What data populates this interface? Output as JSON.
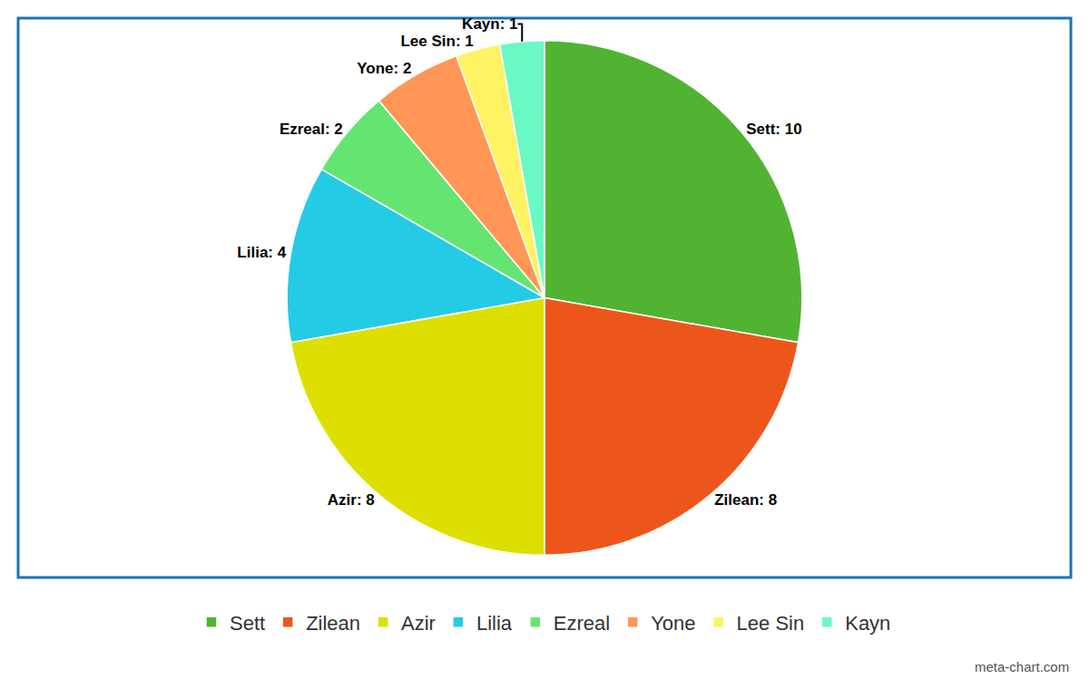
{
  "chart_data": {
    "type": "pie",
    "categories": [
      "Sett",
      "Zilean",
      "Azir",
      "Lilia",
      "Ezreal",
      "Yone",
      "Lee Sin",
      "Kayn"
    ],
    "values": [
      10,
      8,
      8,
      4,
      2,
      2,
      1,
      1
    ],
    "value_labels": [
      "Sett: 10",
      "Zilean: 8",
      "Azir: 8",
      "Lilia: 4",
      "Ezreal: 2",
      "Yone: 2",
      "Lee Sin: 1",
      "Kayn: 1"
    ],
    "colors": [
      "#50b432",
      "#ed561b",
      "#dddf00",
      "#24cbe5",
      "#64e572",
      "#ff9655",
      "#fff263",
      "#6af9c4"
    ],
    "data_labels": true,
    "legend": "bottom",
    "annotations": [
      "meta-chart.com"
    ]
  }
}
